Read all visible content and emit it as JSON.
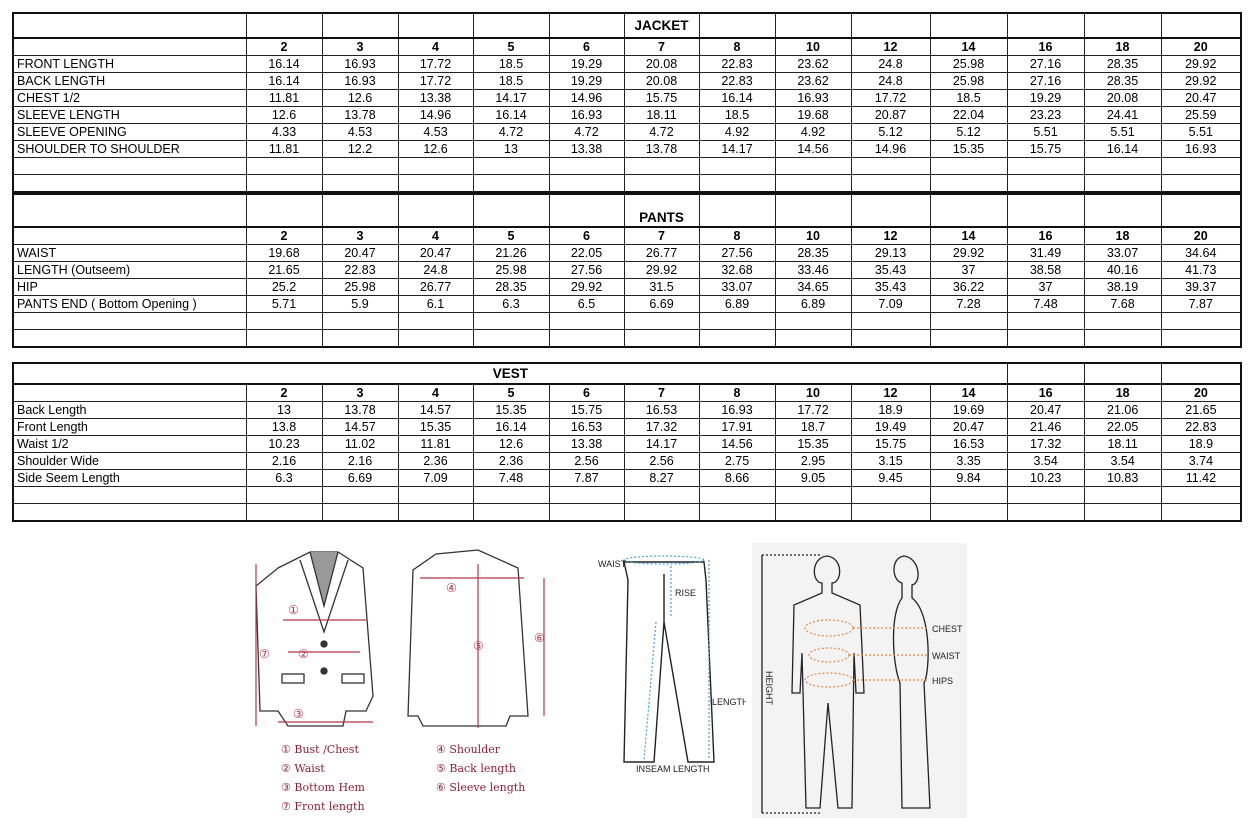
{
  "sizes": [
    "2",
    "3",
    "4",
    "5",
    "6",
    "7",
    "8",
    "10",
    "12",
    "14",
    "16",
    "18",
    "20"
  ],
  "jacket": {
    "title": "JACKET",
    "rows": [
      {
        "label": "FRONT LENGTH",
        "values": [
          "16.14",
          "16.93",
          "17.72",
          "18.5",
          "19.29",
          "20.08",
          "22.83",
          "23.62",
          "24.8",
          "25.98",
          "27.16",
          "28.35",
          "29.92"
        ]
      },
      {
        "label": "BACK LENGTH",
        "values": [
          "16.14",
          "16.93",
          "17.72",
          "18.5",
          "19.29",
          "20.08",
          "22.83",
          "23.62",
          "24.8",
          "25.98",
          "27.16",
          "28.35",
          "29.92"
        ]
      },
      {
        "label": "CHEST 1/2",
        "values": [
          "11.81",
          "12.6",
          "13.38",
          "14.17",
          "14.96",
          "15.75",
          "16.14",
          "16.93",
          "17.72",
          "18.5",
          "19.29",
          "20.08",
          "20.47"
        ]
      },
      {
        "label": "SLEEVE LENGTH",
        "values": [
          "12.6",
          "13.78",
          "14.96",
          "16.14",
          "16.93",
          "18.11",
          "18.5",
          "19.68",
          "20.87",
          "22.04",
          "23.23",
          "24.41",
          "25.59"
        ]
      },
      {
        "label": "SLEEVE OPENING",
        "values": [
          "4.33",
          "4.53",
          "4.53",
          "4.72",
          "4.72",
          "4.72",
          "4.92",
          "4.92",
          "5.12",
          "5.12",
          "5.51",
          "5.51",
          "5.51"
        ]
      },
      {
        "label": "SHOULDER TO SHOULDER",
        "values": [
          "11.81",
          "12.2",
          "12.6",
          "13",
          "13.38",
          "13.78",
          "14.17",
          "14.56",
          "14.96",
          "15.35",
          "15.75",
          "16.14",
          "16.93"
        ]
      }
    ]
  },
  "pants": {
    "title": "PANTS",
    "rows": [
      {
        "label": "WAIST",
        "values": [
          "19.68",
          "20.47",
          "20.47",
          "21.26",
          "22.05",
          "26.77",
          "27.56",
          "28.35",
          "29.13",
          "29.92",
          "31.49",
          "33.07",
          "34.64"
        ]
      },
      {
        "label": "LENGTH (Outseem)",
        "values": [
          "21.65",
          "22.83",
          "24.8",
          "25.98",
          "27.56",
          "29.92",
          "32.68",
          "33.46",
          "35.43",
          "37",
          "38.58",
          "40.16",
          "41.73"
        ]
      },
      {
        "label": "HIP",
        "values": [
          "25.2",
          "25.98",
          "26.77",
          "28.35",
          "29.92",
          "31.5",
          "33.07",
          "34.65",
          "35.43",
          "36.22",
          "37",
          "38.19",
          "39.37"
        ]
      },
      {
        "label": "PANTS END ( Bottom Opening )",
        "values": [
          "5.71",
          "5.9",
          "6.1",
          "6.3",
          "6.5",
          "6.69",
          "6.89",
          "6.89",
          "7.09",
          "7.28",
          "7.48",
          "7.68",
          "7.87"
        ]
      }
    ]
  },
  "vest": {
    "title": "VEST",
    "rows": [
      {
        "label": "Back Length",
        "values": [
          "13",
          "13.78",
          "14.57",
          "15.35",
          "15.75",
          "16.53",
          "16.93",
          "17.72",
          "18.9",
          "19.69",
          "20.47",
          "21.06",
          "21.65"
        ]
      },
      {
        "label": "Front Length",
        "values": [
          "13.8",
          "14.57",
          "15.35",
          "16.14",
          "16.53",
          "17.32",
          "17.91",
          "18.7",
          "19.49",
          "20.47",
          "21.46",
          "22.05",
          "22.83"
        ]
      },
      {
        "label": "Waist 1/2",
        "values": [
          "10.23",
          "11.02",
          "11.81",
          "12.6",
          "13.38",
          "14.17",
          "14.56",
          "15.35",
          "15.75",
          "16.53",
          "17.32",
          "18.11",
          "18.9"
        ]
      },
      {
        "label": "Shoulder Wide",
        "values": [
          "2.16",
          "2.16",
          "2.36",
          "2.36",
          "2.56",
          "2.56",
          "2.75",
          "2.95",
          "3.15",
          "3.35",
          "3.54",
          "3.54",
          "3.74"
        ]
      },
      {
        "label": "Side Seem Length",
        "values": [
          "6.3",
          "6.69",
          "7.09",
          "7.48",
          "7.87",
          "8.27",
          "8.66",
          "9.05",
          "9.45",
          "9.84",
          "10.23",
          "10.83",
          "11.42"
        ]
      }
    ]
  },
  "jacket_diagram": {
    "marks": [
      "①",
      "②",
      "③",
      "⑦",
      "④",
      "⑤",
      "⑥"
    ],
    "legend_left": [
      "① Bust /Chest",
      "② Waist",
      "③ Bottom Hem",
      "⑦ Front length"
    ],
    "legend_right": [
      "④ Shoulder",
      "⑤ Back length",
      "⑥ Sleeve length"
    ],
    "color": "#8b2035"
  },
  "pants_diagram": {
    "waist": "WAIST",
    "rise": "RISE",
    "length": "LENGTH",
    "inseam": "INSEAM LENGTH",
    "color": "#4a9fd8"
  },
  "body_diagram": {
    "height": "HEIGHT",
    "chest": "CHEST",
    "waist": "WAIST",
    "hips": "HIPS",
    "color": "#e08a4a"
  }
}
